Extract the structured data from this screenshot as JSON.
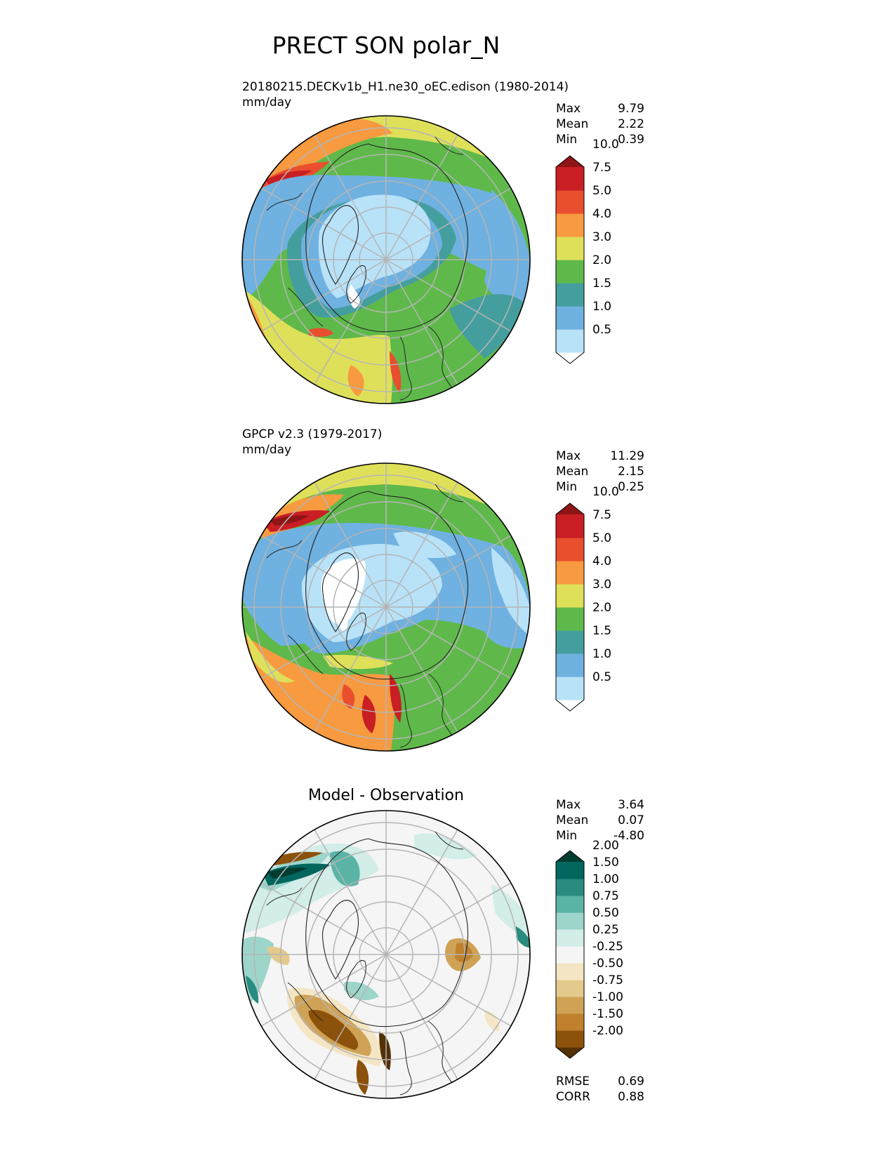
{
  "figure": {
    "title": "PRECT SON polar_N"
  },
  "panels": [
    {
      "id": "test",
      "title": "20180215.DECKv1b_H1.ne30_oEC.edison (1980-2014)",
      "units": "mm/day",
      "stats": [
        {
          "label": "Max",
          "value": "9.79"
        },
        {
          "label": "Mean",
          "value": "2.22"
        },
        {
          "label": "Min",
          "value": "0.39"
        }
      ],
      "colorbar": {
        "levels": [
          "0.5",
          "1.0",
          "1.5",
          "2.0",
          "3.0",
          "4.0",
          "5.0",
          "7.5",
          "10.0"
        ],
        "colors": [
          "#ffffff",
          "#b8e2f8",
          "#6fb1e0",
          "#459e9e",
          "#5fb94a",
          "#dfe05a",
          "#f79a40",
          "#e94e2e",
          "#c81e24",
          "#8e1515"
        ]
      }
    },
    {
      "id": "reference",
      "title": "GPCP v2.3 (1979-2017)",
      "units": "mm/day",
      "stats": [
        {
          "label": "Max",
          "value": "11.29"
        },
        {
          "label": "Mean",
          "value": "2.15"
        },
        {
          "label": "Min",
          "value": "0.25"
        }
      ],
      "colorbar": {
        "levels": [
          "0.5",
          "1.0",
          "1.5",
          "2.0",
          "3.0",
          "4.0",
          "5.0",
          "7.5",
          "10.0"
        ],
        "colors": [
          "#ffffff",
          "#b8e2f8",
          "#6fb1e0",
          "#459e9e",
          "#5fb94a",
          "#dfe05a",
          "#f79a40",
          "#e94e2e",
          "#c81e24",
          "#8e1515"
        ]
      }
    },
    {
      "id": "diff",
      "title": "Model - Observation",
      "stats": [
        {
          "label": "Max",
          "value": "3.64"
        },
        {
          "label": "Mean",
          "value": "0.07"
        },
        {
          "label": "Min",
          "value": "-4.80"
        }
      ],
      "extra_stats": [
        {
          "label": "RMSE",
          "value": "0.69"
        },
        {
          "label": "CORR",
          "value": "0.88"
        }
      ],
      "colorbar": {
        "levels": [
          "-2.00",
          "-1.50",
          "-1.00",
          "-0.75",
          "-0.50",
          "-0.25",
          "0.25",
          "0.50",
          "0.75",
          "1.00",
          "1.50",
          "2.00"
        ],
        "colors": [
          "#543005",
          "#8c510a",
          "#bf812d",
          "#cfa256",
          "#e3c98c",
          "#f4e6c4",
          "#f5f5f5",
          "#d3ede9",
          "#9dd5cb",
          "#5ab4a5",
          "#2a8c80",
          "#01665e",
          "#003c30"
        ]
      }
    }
  ]
}
